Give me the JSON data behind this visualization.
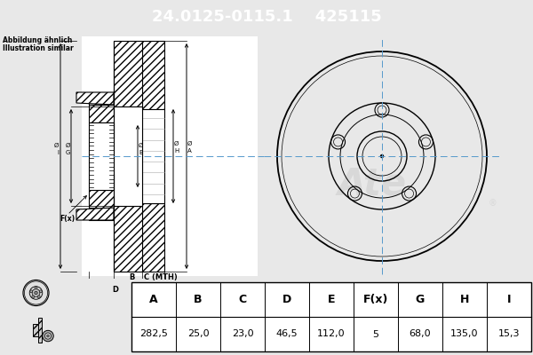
{
  "part_number": "24.0125-0115.1",
  "alt_number": "425115",
  "header_bg": "#0000cc",
  "header_text_color": "#ffffff",
  "bg_color": "#e8e8e8",
  "drawing_bg": "#e8e8e8",
  "table_bg": "#ffffff",
  "table_headers": [
    "A",
    "B",
    "C",
    "D",
    "E",
    "F(x)",
    "G",
    "H",
    "I"
  ],
  "table_values": [
    "282,5",
    "25,0",
    "23,0",
    "46,5",
    "112,0",
    "5",
    "68,0",
    "135,0",
    "15,3"
  ],
  "note_line1": "Abbildung ähnlich",
  "note_line2": "Illustration similar",
  "centerline_color": "#5599cc",
  "line_color": "#000000",
  "header_fontsize": 13,
  "table_fontsize": 8
}
